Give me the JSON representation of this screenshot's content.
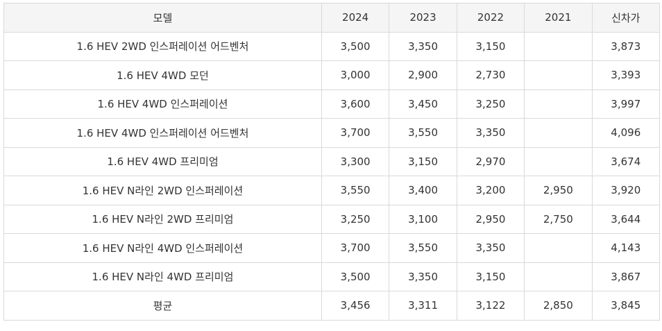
{
  "table": {
    "headers": [
      "모델",
      "2024",
      "2023",
      "2022",
      "2021",
      "신차가"
    ],
    "rows": [
      [
        "1.6 HEV 2WD 인스퍼레이션 어드벤처",
        "3,500",
        "3,350",
        "3,150",
        "",
        "3,873"
      ],
      [
        "1.6 HEV 4WD 모던",
        "3,000",
        "2,900",
        "2,730",
        "",
        "3,393"
      ],
      [
        "1.6 HEV 4WD 인스퍼레이션",
        "3,600",
        "3,450",
        "3,250",
        "",
        "3,997"
      ],
      [
        "1.6 HEV 4WD 인스퍼레이션 어드벤처",
        "3,700",
        "3,550",
        "3,350",
        "",
        "4,096"
      ],
      [
        "1.6 HEV 4WD 프리미엄",
        "3,300",
        "3,150",
        "2,970",
        "",
        "3,674"
      ],
      [
        "1.6 HEV N라인 2WD 인스퍼레이션",
        "3,550",
        "3,400",
        "3,200",
        "2,950",
        "3,920"
      ],
      [
        "1.6 HEV N라인 2WD 프리미엄",
        "3,250",
        "3,100",
        "2,950",
        "2,750",
        "3,644"
      ],
      [
        "1.6 HEV N라인 4WD 인스퍼레이션",
        "3,700",
        "3,550",
        "3,350",
        "",
        "4,143"
      ],
      [
        "1.6 HEV N라인 4WD 프리미엄",
        "3,500",
        "3,350",
        "3,150",
        "",
        "3,867"
      ],
      [
        "평균",
        "3,456",
        "3,311",
        "3,122",
        "2,850",
        "3,845"
      ]
    ]
  }
}
